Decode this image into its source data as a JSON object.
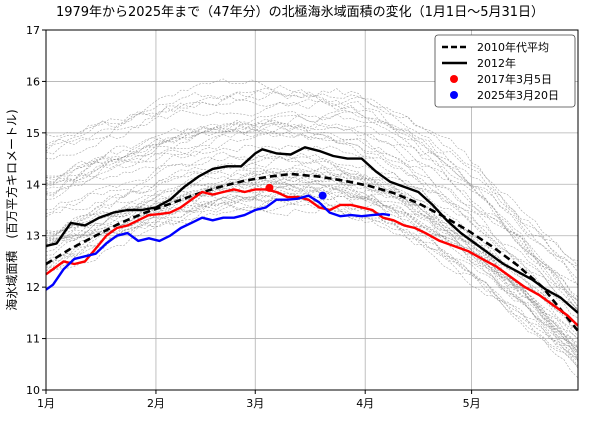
{
  "chart_data": {
    "type": "line",
    "title": "1979年から2025年まで（47年分）の北極海氷域面積の変化（1月1日～5月31日）",
    "xlabel": "",
    "ylabel": "海氷域面積　(百万平方キロメートル)",
    "xlim": [
      1,
      151
    ],
    "ylim": [
      10,
      17
    ],
    "yticks": [
      10,
      11,
      12,
      13,
      14,
      15,
      16,
      17
    ],
    "xticks": [
      {
        "day": 1,
        "label": "1月"
      },
      {
        "day": 32,
        "label": "2月"
      },
      {
        "day": 60,
        "label": "3月"
      },
      {
        "day": 91,
        "label": "4月"
      },
      {
        "day": 121,
        "label": "5月"
      }
    ],
    "grid": true,
    "legend_position": "top-right",
    "legend": [
      {
        "label": "2010年代平均",
        "style": "dashed",
        "color": "#000000"
      },
      {
        "label": "2012年",
        "style": "solid",
        "color": "#000000"
      },
      {
        "label": "2017年3月5日",
        "style": "marker",
        "color": "#ff0000"
      },
      {
        "label": "2025年3月20日",
        "style": "marker",
        "color": "#0000ff"
      }
    ],
    "background_years": {
      "count": 47,
      "color": "#8a8a8a",
      "style": "dashed-thin",
      "spread_at_start": [
        12.4,
        15.2
      ],
      "spread_at_peak": [
        13.7,
        16.2
      ],
      "spread_at_end": [
        10.5,
        12.6
      ]
    },
    "series": [
      {
        "name": "2010年代平均",
        "style": "dashed",
        "color": "#000000",
        "x": [
          1,
          8,
          15,
          22,
          29,
          36,
          43,
          50,
          57,
          64,
          70,
          78,
          85,
          92,
          99,
          106,
          113,
          120,
          127,
          134,
          141,
          151
        ],
        "y": [
          12.45,
          12.75,
          13.0,
          13.25,
          13.45,
          13.62,
          13.8,
          13.95,
          14.07,
          14.15,
          14.2,
          14.15,
          14.07,
          13.97,
          13.83,
          13.63,
          13.38,
          13.1,
          12.78,
          12.42,
          12.0,
          11.15
        ]
      },
      {
        "name": "2012年",
        "style": "solid",
        "color": "#000000",
        "x": [
          1,
          4,
          8,
          12,
          16,
          20,
          24,
          28,
          32,
          36,
          40,
          44,
          48,
          52,
          56,
          60,
          62,
          66,
          70,
          74,
          78,
          82,
          86,
          90,
          94,
          98,
          102,
          106,
          110,
          114,
          118,
          122,
          126,
          130,
          134,
          138,
          142,
          146,
          151
        ],
        "y": [
          12.8,
          12.85,
          13.25,
          13.2,
          13.35,
          13.45,
          13.5,
          13.5,
          13.55,
          13.7,
          13.95,
          14.15,
          14.3,
          14.35,
          14.35,
          14.6,
          14.68,
          14.6,
          14.58,
          14.72,
          14.65,
          14.55,
          14.5,
          14.5,
          14.25,
          14.05,
          13.95,
          13.85,
          13.6,
          13.3,
          13.05,
          12.85,
          12.65,
          12.45,
          12.3,
          12.15,
          11.95,
          11.8,
          11.5
        ]
      },
      {
        "name": "2017年",
        "style": "solid",
        "color": "#ff0000",
        "x": [
          1,
          3,
          6,
          9,
          12,
          15,
          18,
          21,
          24,
          27,
          30,
          33,
          36,
          39,
          42,
          45,
          48,
          51,
          54,
          57,
          60,
          63,
          66,
          69,
          72,
          75,
          78,
          81,
          84,
          87,
          90,
          93,
          96,
          99,
          102,
          105,
          108,
          112,
          116,
          120,
          124,
          128,
          132,
          136,
          140,
          144,
          148,
          151
        ],
        "y": [
          12.25,
          12.35,
          12.5,
          12.45,
          12.5,
          12.75,
          13.0,
          13.15,
          13.2,
          13.3,
          13.4,
          13.42,
          13.45,
          13.55,
          13.7,
          13.85,
          13.8,
          13.85,
          13.9,
          13.85,
          13.9,
          13.9,
          13.85,
          13.75,
          13.75,
          13.7,
          13.55,
          13.5,
          13.6,
          13.6,
          13.55,
          13.5,
          13.35,
          13.3,
          13.2,
          13.15,
          13.05,
          12.9,
          12.8,
          12.7,
          12.55,
          12.4,
          12.2,
          12.0,
          11.85,
          11.65,
          11.45,
          11.25
        ]
      },
      {
        "name": "2025年",
        "style": "solid",
        "color": "#0000ff",
        "x": [
          1,
          3,
          6,
          9,
          12,
          15,
          18,
          21,
          24,
          27,
          30,
          33,
          36,
          39,
          42,
          45,
          48,
          51,
          54,
          57,
          60,
          63,
          66,
          69,
          72,
          75,
          78,
          81,
          84,
          87,
          90,
          93,
          96,
          98
        ],
        "y": [
          11.95,
          12.05,
          12.35,
          12.55,
          12.6,
          12.65,
          12.85,
          13.0,
          13.05,
          12.9,
          12.95,
          12.9,
          13.0,
          13.15,
          13.25,
          13.35,
          13.3,
          13.35,
          13.35,
          13.4,
          13.5,
          13.55,
          13.7,
          13.7,
          13.72,
          13.78,
          13.65,
          13.45,
          13.38,
          13.4,
          13.38,
          13.4,
          13.42,
          13.4
        ]
      }
    ],
    "annotations": [
      {
        "label": "2017年3月5日",
        "x": 64,
        "y": 13.93,
        "color": "#ff0000"
      },
      {
        "label": "2025年3月20日",
        "x": 79,
        "y": 13.78,
        "color": "#0000ff"
      }
    ]
  }
}
